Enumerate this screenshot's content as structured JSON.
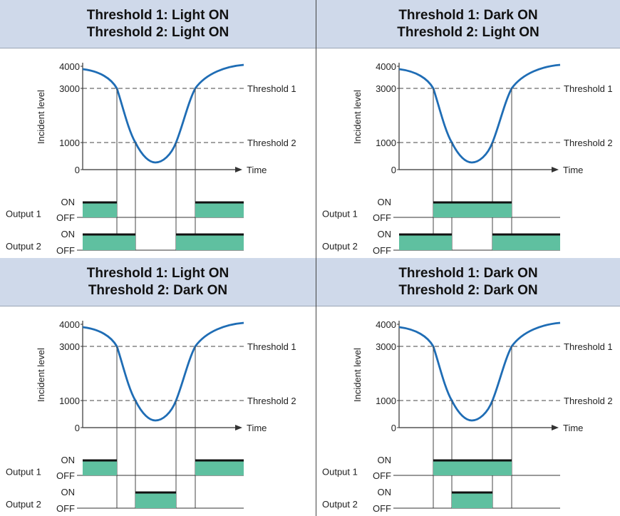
{
  "panels": [
    {
      "header": {
        "line1": "Threshold 1: Light ON",
        "line2": "Threshold 2: Light ON"
      },
      "output1_on": [
        [
          0,
          1
        ],
        [
          3,
          4
        ]
      ],
      "output2_on": [
        [
          0,
          2
        ],
        [
          2.5,
          4
        ]
      ],
      "show_threshold_dashes_from": "left"
    },
    {
      "header": {
        "line1": "Threshold 1: Dark ON",
        "line2": "Threshold 2: Light ON"
      },
      "output1_on": [
        [
          1,
          3
        ]
      ],
      "output2_on": [
        [
          0,
          2
        ],
        [
          2.5,
          4
        ]
      ]
    },
    {
      "header": {
        "line1": "Threshold 1: Light ON",
        "line2": "Threshold 2: Dark ON"
      },
      "output1_on": [
        [
          0,
          1
        ],
        [
          3,
          4
        ]
      ],
      "output2_on": [
        [
          2,
          2.5
        ]
      ]
    },
    {
      "header": {
        "line1": "Threshold 1: Dark ON",
        "line2": "Threshold 2: Dark ON"
      },
      "output1_on": [
        [
          1,
          3
        ]
      ],
      "output2_on": [
        [
          2,
          2.5
        ]
      ]
    }
  ],
  "labels": {
    "y_axis": "Incident level",
    "x_axis": "Time",
    "threshold1": "Threshold 1",
    "threshold2": "Threshold 2",
    "output1": "Output 1",
    "output2": "Output 2",
    "on": "ON",
    "off": "OFF",
    "ticks": [
      "4000",
      "3000",
      "1000",
      "0"
    ]
  },
  "colors": {
    "curve": "#1f6db5",
    "on_fill": "#5fc0a0",
    "on_bar": "#111111",
    "header_bg": "#cfd9ea"
  }
}
